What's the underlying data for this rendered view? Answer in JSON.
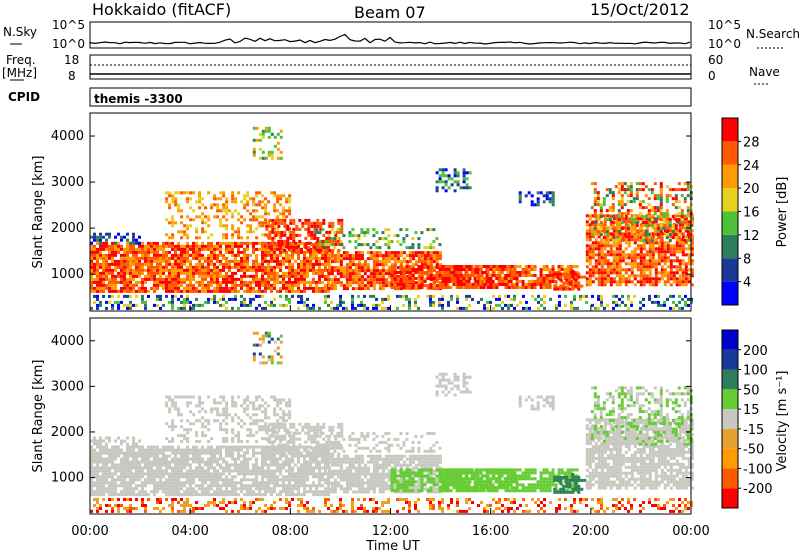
{
  "header": {
    "station": "Hokkaido (fitACF)",
    "beam": "Beam 07",
    "date": "15/Oct/2012"
  },
  "strip": {
    "nsky_label": "N.Sky",
    "nsky_ticks": [
      "10^5",
      "10^0"
    ],
    "nsearch_label": "N.Search",
    "nsearch_ticks": [
      "10^5",
      "10^0"
    ],
    "freq_label": "Freq.",
    "freq_unit": "[MHz]",
    "freq_ticks": [
      "18",
      "8"
    ],
    "nave_label": "Nave",
    "nave_ticks": [
      "60",
      "0"
    ],
    "cpid_label": "CPID",
    "cpid_value": "themis -3300"
  },
  "colors": {
    "power": [
      "#0000ff",
      "#1a3a9a",
      "#2e7d5b",
      "#4cc23a",
      "#e8d020",
      "#ff9a00",
      "#ff5a00",
      "#ff0000"
    ],
    "velocity": [
      "#ff0000",
      "#ff5a00",
      "#ff9a00",
      "#e8a030",
      "#c8c8c0",
      "#66cc33",
      "#2e7d5b",
      "#1a3a9a",
      "#0000cc"
    ]
  },
  "chart_data": [
    {
      "type": "heatmap",
      "name": "power",
      "ylabel": "Slant Range [km]",
      "yticks": [
        "1000",
        "2000",
        "3000",
        "4000"
      ],
      "ylim": [
        200,
        4500
      ],
      "colorbar_label": "Power [dB]",
      "colorbar_ticks": [
        "4",
        "8",
        "12",
        "16",
        "20",
        "24",
        "28"
      ],
      "colorbar_range": [
        0,
        32
      ]
    },
    {
      "type": "heatmap",
      "name": "velocity",
      "ylabel": "Slant Range [km]",
      "yticks": [
        "1000",
        "2000",
        "3000",
        "4000"
      ],
      "ylim": [
        200,
        4500
      ],
      "colorbar_label": "Velocity [m s⁻¹]",
      "colorbar_ticks": [
        "200",
        "100",
        "50",
        "15",
        "-15",
        "-50",
        "-100",
        "-200"
      ],
      "xlabel": "Time UT",
      "xticks": [
        "00:00",
        "04:00",
        "08:00",
        "12:00",
        "16:00",
        "20:00",
        "00:00"
      ]
    }
  ]
}
